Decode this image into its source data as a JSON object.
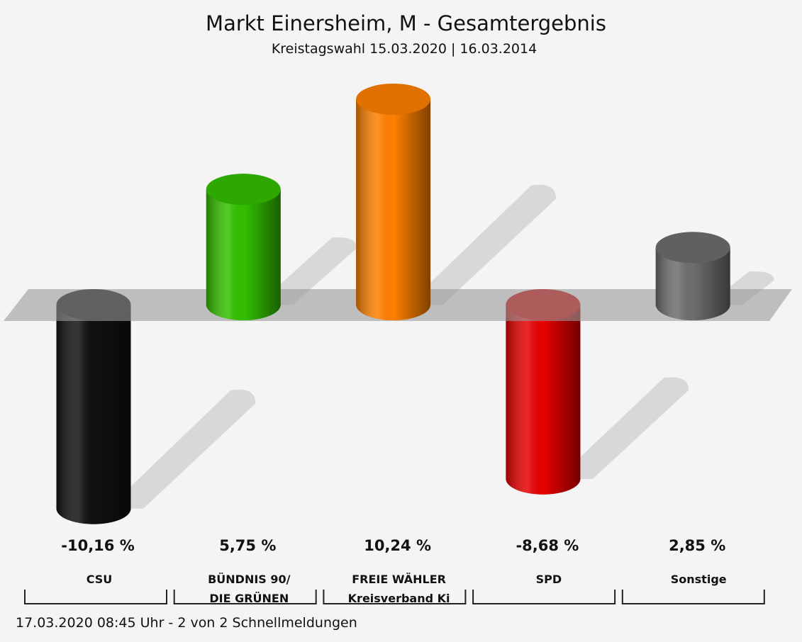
{
  "chart_data": {
    "type": "bar3d",
    "title": "Markt Einersheim, M - Gesamtergebnis",
    "subtitle": "Kreistagswahl 15.03.2020  | 16.03.2014",
    "footer": "17.03.2020 08:45 Uhr - 2 von 2 Schnellmeldungen",
    "categories": [
      "CSU",
      "BÜNDNIS 90/\nDIE GRÜNEN",
      "FREIE WÄHLER\nKreisverband Ki",
      "SPD",
      "Sonstige"
    ],
    "values": [
      -10.16,
      5.75,
      10.24,
      -8.68,
      2.85
    ],
    "value_labels": [
      "-10,16 %",
      "5,75 %",
      "10,24 %",
      "-8,68 %",
      "2,85 %"
    ],
    "colors": [
      "#111111",
      "#33c000",
      "#ff8000",
      "#e80000",
      "#6e6e6e"
    ]
  }
}
